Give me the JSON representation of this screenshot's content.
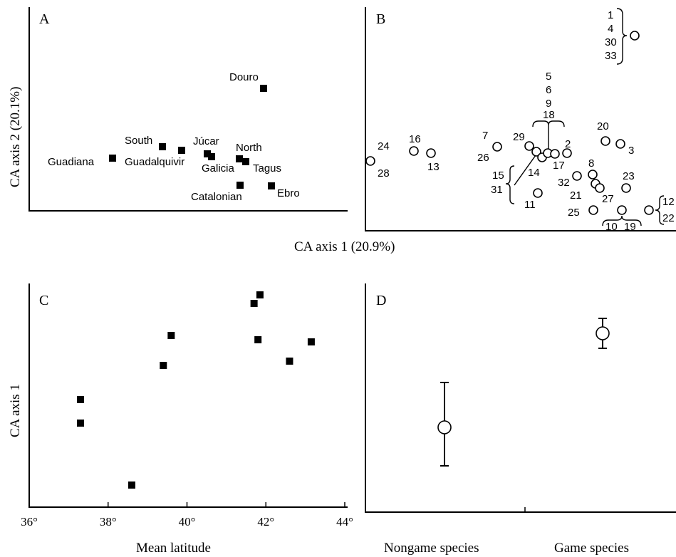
{
  "chart_data": [
    {
      "panel": "A",
      "type": "scatter",
      "ylabel": "CA axis 2 (20.1%)",
      "points": [
        {
          "label": "Douro",
          "x": 0.6,
          "y": 0.72
        },
        {
          "label": "South",
          "x": 0.43,
          "y": 0.39
        },
        {
          "label": "Júcar",
          "x": 0.49,
          "y": 0.37
        },
        {
          "label": "North",
          "x": 0.6,
          "y": 0.32
        },
        {
          "label": "Guadiana",
          "x": 0.25,
          "y": 0.34
        },
        {
          "label": "Guadalquivir",
          "x": 0.53,
          "y": 0.36
        },
        {
          "label": "Galicia",
          "x": 0.55,
          "y": 0.35
        },
        {
          "label": "Tagus",
          "x": 0.62,
          "y": 0.31
        },
        {
          "label": "Catalonian",
          "x": 0.62,
          "y": 0.16
        },
        {
          "label": "Ebro",
          "x": 0.66,
          "y": 0.16
        }
      ]
    },
    {
      "panel": "B",
      "type": "scatter",
      "points": [
        {
          "label": "1 4 30 33",
          "x": 0.88,
          "y": 0.95
        },
        {
          "label": "24 28",
          "x": 0.02,
          "y": 0.34
        },
        {
          "label": "16",
          "x": 0.16,
          "y": 0.39
        },
        {
          "label": "13",
          "x": 0.21,
          "y": 0.37
        },
        {
          "label": "7 26",
          "x": 0.44,
          "y": 0.41
        },
        {
          "label": "29",
          "x": 0.55,
          "y": 0.41
        },
        {
          "label": "5 6 9 18",
          "x": 0.6,
          "y": 0.38
        },
        {
          "label": "14",
          "x": 0.57,
          "y": 0.37
        },
        {
          "label": "",
          "x": 0.58,
          "y": 0.35
        },
        {
          "label": "15 31",
          "x": 0.59,
          "y": 0.37
        },
        {
          "label": "17",
          "x": 0.62,
          "y": 0.37
        },
        {
          "label": "2",
          "x": 0.67,
          "y": 0.37
        },
        {
          "label": "20",
          "x": 0.79,
          "y": 0.43
        },
        {
          "label": "3",
          "x": 0.84,
          "y": 0.42
        },
        {
          "label": "32",
          "x": 0.7,
          "y": 0.25
        },
        {
          "label": "8",
          "x": 0.76,
          "y": 0.26
        },
        {
          "label": "21",
          "x": 0.77,
          "y": 0.22
        },
        {
          "label": "27",
          "x": 0.78,
          "y": 0.2
        },
        {
          "label": "23",
          "x": 0.86,
          "y": 0.2
        },
        {
          "label": "11",
          "x": 0.57,
          "y": 0.17
        },
        {
          "label": "25",
          "x": 0.75,
          "y": 0.08
        },
        {
          "label": "10 19",
          "x": 0.84,
          "y": 0.08
        },
        {
          "label": "12 22",
          "x": 0.93,
          "y": 0.08
        }
      ],
      "xlabel": "CA axis 1 (20.9%)"
    },
    {
      "panel": "C",
      "type": "scatter",
      "xlabel": "Mean latitude",
      "ylabel": "CA axis 1",
      "xlim": [
        36,
        44
      ],
      "xticks": [
        "36°",
        "38°",
        "40°",
        "42°",
        "44°"
      ],
      "points": [
        {
          "x": 37.3,
          "y": 0.48
        },
        {
          "x": 37.3,
          "y": 0.37
        },
        {
          "x": 38.6,
          "y": 0.08
        },
        {
          "x": 39.4,
          "y": 0.64
        },
        {
          "x": 39.6,
          "y": 0.78
        },
        {
          "x": 41.7,
          "y": 0.93
        },
        {
          "x": 41.85,
          "y": 0.97
        },
        {
          "x": 41.8,
          "y": 0.76
        },
        {
          "x": 42.6,
          "y": 0.66
        },
        {
          "x": 43.15,
          "y": 0.75
        }
      ]
    },
    {
      "panel": "D",
      "type": "scatter",
      "categories": [
        "Nongame species",
        "Game species"
      ],
      "values": [
        0.35,
        0.79
      ],
      "error_low": [
        0.17,
        0.72
      ],
      "error_high": [
        0.56,
        0.86
      ]
    }
  ],
  "labels": {
    "panelA": "A",
    "panelB": "B",
    "panelC": "C",
    "panelD": "D",
    "ylabelA": "CA axis 2 (20.1%)",
    "xlabelAB": "CA axis 1 (20.9%)",
    "ylabelC": "CA axis 1",
    "xlabelC": "Mean latitude",
    "nongame": "Nongame species",
    "game": "Game species"
  },
  "panelB_labels": {
    "g1": [
      "1",
      "4",
      "30",
      "33"
    ],
    "g5": [
      "5",
      "6",
      "9",
      "18"
    ],
    "l7": "7",
    "l29": "29",
    "l26": "26",
    "l2": "2",
    "l20": "20",
    "l3": "3",
    "l24": "24",
    "l28": "28",
    "l16": "16",
    "l13": "13",
    "l14": "14",
    "l17": "17",
    "l15": "15",
    "l31": "31",
    "l11": "11",
    "l8": "8",
    "l32": "32",
    "l21": "21",
    "l23": "23",
    "l27": "27",
    "l25": "25",
    "l10": "10",
    "l19": "19",
    "l12": "12",
    "l22": "22"
  }
}
